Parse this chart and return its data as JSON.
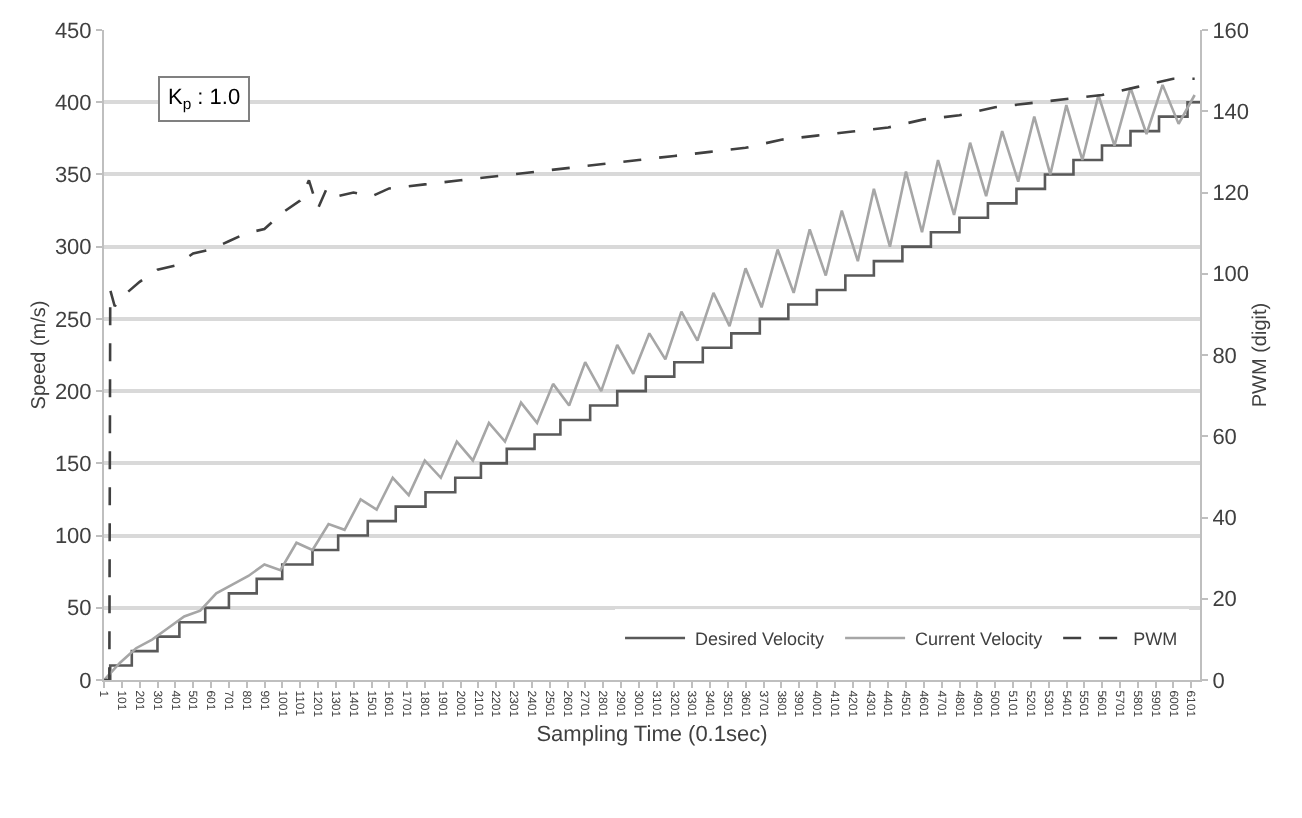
{
  "chart_data": {
    "type": "line",
    "xlabel": "Sampling Time (0.1sec)",
    "ylabel": "Speed (m/s)",
    "y2label": "PWM (digit)",
    "annotations": [
      "K$_{p}$ : 1.0"
    ],
    "xlim": [
      0,
      6150
    ],
    "xticks": [
      1,
      101,
      201,
      301,
      401,
      501,
      601,
      701,
      801,
      901,
      1001,
      1101,
      1201,
      1301,
      1401,
      1501,
      1601,
      1701,
      1801,
      1901,
      2001,
      2101,
      2201,
      2301,
      2401,
      2501,
      2601,
      2701,
      2801,
      2901,
      3001,
      3101,
      3201,
      3301,
      3401,
      3501,
      3601,
      3701,
      3801,
      3901,
      4001,
      4101,
      4201,
      4301,
      4401,
      4501,
      4601,
      4701,
      4801,
      4901,
      5001,
      5101,
      5201,
      5301,
      5401,
      5501,
      5601,
      5701,
      5801,
      5901,
      6001,
      6101
    ],
    "ylim": [
      0,
      450
    ],
    "yticks": [
      0,
      50,
      100,
      150,
      200,
      250,
      300,
      350,
      400,
      450
    ],
    "y2lim": [
      0,
      160
    ],
    "y2ticks": [
      0,
      20,
      40,
      60,
      80,
      100,
      120,
      140,
      160
    ],
    "grid": "y",
    "legend": "bottom right",
    "series": [
      {
        "name": "Desired Velocity",
        "type": "step",
        "color": "#595959",
        "x": [
          1,
          35,
          156,
          300,
          423,
          568,
          701,
          857,
          1000,
          1170,
          1314,
          1480,
          1637,
          1804,
          1971,
          2115,
          2260,
          2416,
          2561,
          2728,
          2880,
          3040,
          3200,
          3360,
          3520,
          3680,
          3840,
          4000,
          4160,
          4320,
          4480,
          4640,
          4800,
          4960,
          5120,
          5280,
          5440,
          5600,
          5760,
          5920,
          6080,
          6150
        ],
        "values": [
          0,
          10,
          20,
          30,
          40,
          50,
          60,
          70,
          80,
          90,
          100,
          110,
          120,
          130,
          140,
          150,
          160,
          170,
          180,
          190,
          200,
          210,
          220,
          230,
          240,
          250,
          260,
          270,
          280,
          290,
          300,
          310,
          320,
          330,
          340,
          350,
          360,
          370,
          380,
          390,
          400,
          400
        ]
      },
      {
        "name": "Current Velocity",
        "color": "#a6a6a6",
        "x": [
          1,
          90,
          180,
          270,
          360,
          450,
          540,
          630,
          720,
          810,
          900,
          990,
          1080,
          1170,
          1260,
          1350,
          1440,
          1530,
          1620,
          1710,
          1800,
          1890,
          1980,
          2070,
          2160,
          2250,
          2340,
          2430,
          2520,
          2610,
          2700,
          2790,
          2880,
          2970,
          3060,
          3150,
          3240,
          3330,
          3420,
          3510,
          3600,
          3690,
          3780,
          3870,
          3960,
          4050,
          4140,
          4230,
          4320,
          4410,
          4500,
          4590,
          4680,
          4770,
          4860,
          4950,
          5040,
          5130,
          5220,
          5310,
          5400,
          5490,
          5580,
          5670,
          5760,
          5850,
          5940,
          6030,
          6120
        ],
        "values": [
          0,
          12,
          22,
          28,
          36,
          44,
          48,
          60,
          66,
          72,
          80,
          76,
          95,
          90,
          108,
          104,
          125,
          118,
          140,
          128,
          152,
          140,
          165,
          152,
          178,
          165,
          192,
          178,
          205,
          190,
          220,
          200,
          232,
          212,
          240,
          222,
          255,
          235,
          268,
          245,
          285,
          258,
          298,
          268,
          312,
          280,
          325,
          290,
          340,
          300,
          352,
          310,
          360,
          322,
          372,
          335,
          380,
          345,
          390,
          350,
          398,
          360,
          405,
          370,
          410,
          378,
          412,
          385,
          405
        ]
      },
      {
        "name": "PWM",
        "axis": "y2",
        "color": "#404040",
        "line_style": "dashed",
        "x": [
          1,
          30,
          35,
          60,
          120,
          200,
          300,
          400,
          500,
          600,
          700,
          800,
          900,
          1000,
          1100,
          1150,
          1200,
          1250,
          1300,
          1400,
          1500,
          1600,
          1800,
          2000,
          2200,
          2400,
          2600,
          2800,
          3000,
          3200,
          3400,
          3600,
          3800,
          4000,
          4200,
          4400,
          4600,
          4800,
          5000,
          5200,
          5400,
          5600,
          5800,
          6000,
          6120
        ],
        "values": [
          0,
          0,
          96,
          92,
          95,
          98,
          101,
          102,
          105,
          106,
          108,
          110,
          111,
          115,
          118,
          123,
          116,
          121,
          119,
          120,
          119,
          121,
          122,
          123,
          124,
          125,
          126,
          127,
          128,
          129,
          130,
          131,
          133,
          134,
          135,
          136,
          138,
          139,
          141,
          142,
          143,
          144,
          146,
          148,
          148
        ]
      }
    ]
  }
}
